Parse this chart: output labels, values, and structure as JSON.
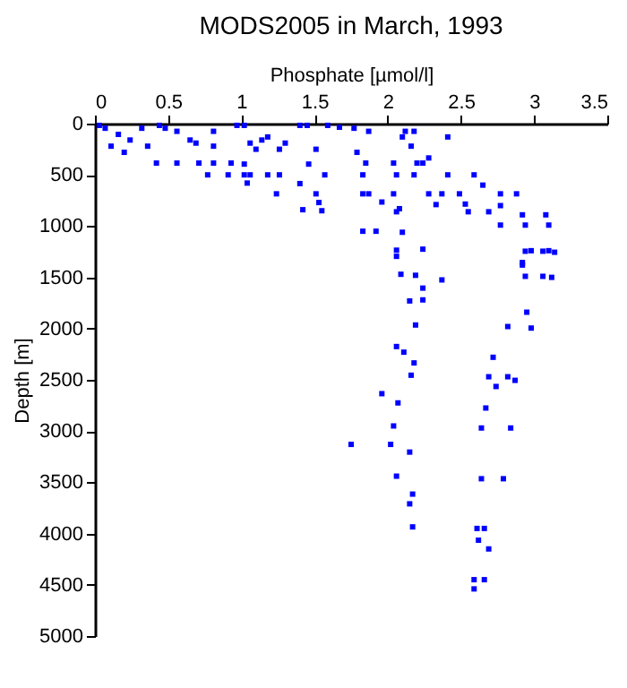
{
  "chart_data": {
    "type": "scatter",
    "title": "MODS2005 in March, 1993",
    "xlabel": "Phosphate [µmol/l]",
    "ylabel": "Depth [m]",
    "xlim": [
      0,
      3.5
    ],
    "xticks": [
      0,
      0.5,
      1,
      1.5,
      2,
      2.5,
      3,
      3.5
    ],
    "ylim": [
      5000,
      0
    ],
    "yticks": [
      0,
      500,
      1000,
      1500,
      2000,
      2500,
      3000,
      3500,
      4000,
      4500,
      5000
    ],
    "marker": "square",
    "series": [
      {
        "color": "#0000ff",
        "x": [
          0.07,
          0.16,
          0.24,
          0.11,
          0.32,
          0.44,
          0.48,
          0.36,
          0.2,
          0.03,
          0.56,
          0.69,
          0.65,
          0.81,
          0.81,
          0.42,
          0.56,
          0.71,
          0.81,
          0.77,
          0.93,
          0.97,
          1.02,
          1.06,
          1.14,
          1.18,
          1.1,
          1.02,
          0.91,
          1.02,
          1.06,
          1.04,
          1.18,
          1.26,
          1.24,
          1.3,
          1.26,
          1.4,
          1.45,
          1.51,
          1.46,
          1.4,
          1.51,
          1.53,
          1.55,
          1.42,
          1.57,
          1.59,
          1.67,
          1.77,
          1.87,
          1.79,
          1.85,
          1.83,
          1.83,
          1.87,
          1.83,
          1.92,
          1.96,
          2.04,
          2.06,
          2.04,
          2.08,
          2.06,
          2.1,
          2.12,
          2.1,
          2.16,
          2.18,
          2.2,
          2.24,
          2.28,
          2.18,
          2.28,
          2.41,
          2.37,
          2.33,
          2.41,
          2.49,
          2.53,
          2.59,
          2.55,
          2.65,
          2.69,
          2.77,
          2.88,
          2.77,
          2.92,
          2.77,
          2.94,
          3.08,
          3.1,
          2.98,
          3.1,
          2.92,
          2.06,
          2.06,
          2.24,
          2.09,
          2.19,
          2.37,
          2.24,
          2.24,
          2.15,
          2.19,
          2.06,
          2.11,
          2.18,
          2.16,
          1.96,
          2.07,
          2.04,
          1.75,
          2.02,
          2.15,
          2.06,
          2.17,
          2.15,
          2.17,
          2.94,
          3.06,
          3.14,
          2.92,
          2.94,
          3.06,
          3.12,
          2.95,
          2.82,
          2.98,
          2.72,
          2.69,
          2.82,
          2.87,
          2.74,
          2.67,
          2.64,
          2.84,
          2.64,
          2.79,
          2.61,
          2.66,
          2.62,
          2.69,
          2.59,
          2.66,
          2.59
        ],
        "values": [
          45,
          105,
          160,
          220,
          45,
          17,
          45,
          220,
          280,
          17,
          75,
          190,
          160,
          75,
          220,
          385,
          385,
          385,
          385,
          500,
          385,
          17,
          17,
          190,
          160,
          130,
          250,
          395,
          500,
          500,
          500,
          580,
          500,
          500,
          685,
          190,
          250,
          17,
          17,
          250,
          395,
          585,
          685,
          770,
          850,
          840,
          500,
          17,
          35,
          45,
          75,
          280,
          385,
          500,
          685,
          685,
          1050,
          1050,
          765,
          385,
          500,
          685,
          830,
          860,
          1060,
          75,
          130,
          220,
          75,
          385,
          385,
          335,
          500,
          685,
          500,
          685,
          790,
          130,
          685,
          785,
          500,
          860,
          600,
          860,
          685,
          685,
          800,
          890,
          990,
          990,
          890,
          990,
          1240,
          1240,
          1355,
          1235,
          1295,
          1225,
          1470,
          1480,
          1525,
          1605,
          1720,
          1730,
          1965,
          2175,
          2230,
          2335,
          2455,
          2635,
          2725,
          2950,
          3130,
          3130,
          3205,
          3440,
          3615,
          3710,
          3935,
          1245,
          1245,
          1255,
          1380,
          1490,
          1490,
          1500,
          1840,
          1980,
          1995,
          2280,
          2470,
          2470,
          2505,
          2565,
          2775,
          2970,
          2970,
          3465,
          3465,
          3950,
          3950,
          4065,
          4150,
          4450,
          4450,
          4540
        ]
      }
    ]
  }
}
